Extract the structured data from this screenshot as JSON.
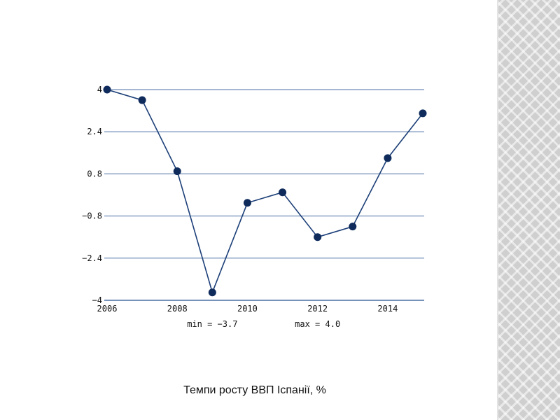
{
  "colors": {
    "line": "#1c3f78",
    "marker": "#0f2b5c",
    "grid": "#4a6ea3",
    "strip": "#cfcfcf"
  },
  "caption": "Темпи росту ВВП Іспанії, %",
  "chart_data": {
    "type": "line",
    "title": "",
    "xlabel": "",
    "ylabel": "",
    "xlim": [
      2006,
      2015
    ],
    "ylim": [
      -4,
      4
    ],
    "x_ticks": [
      2006,
      2008,
      2010,
      2012,
      2014
    ],
    "x_tick_labels": [
      "2006",
      "2008",
      "2010",
      "2012",
      "2014"
    ],
    "y_ticks": [
      4,
      2.4,
      0.8,
      -0.8,
      -2.4,
      -4
    ],
    "y_tick_labels": [
      "4",
      "2.4",
      "0.8",
      "−0.8",
      "−2.4",
      "−4"
    ],
    "grid": true,
    "series": [
      {
        "x": [
          2006,
          2007,
          2008,
          2009,
          2010,
          2011,
          2012,
          2013,
          2014,
          2015
        ],
        "values": [
          4.0,
          3.6,
          0.9,
          -3.7,
          -0.3,
          0.1,
          -1.6,
          -1.2,
          1.4,
          3.1
        ]
      }
    ],
    "annotations": [
      "min = −3.7",
      "max = 4.0"
    ]
  }
}
